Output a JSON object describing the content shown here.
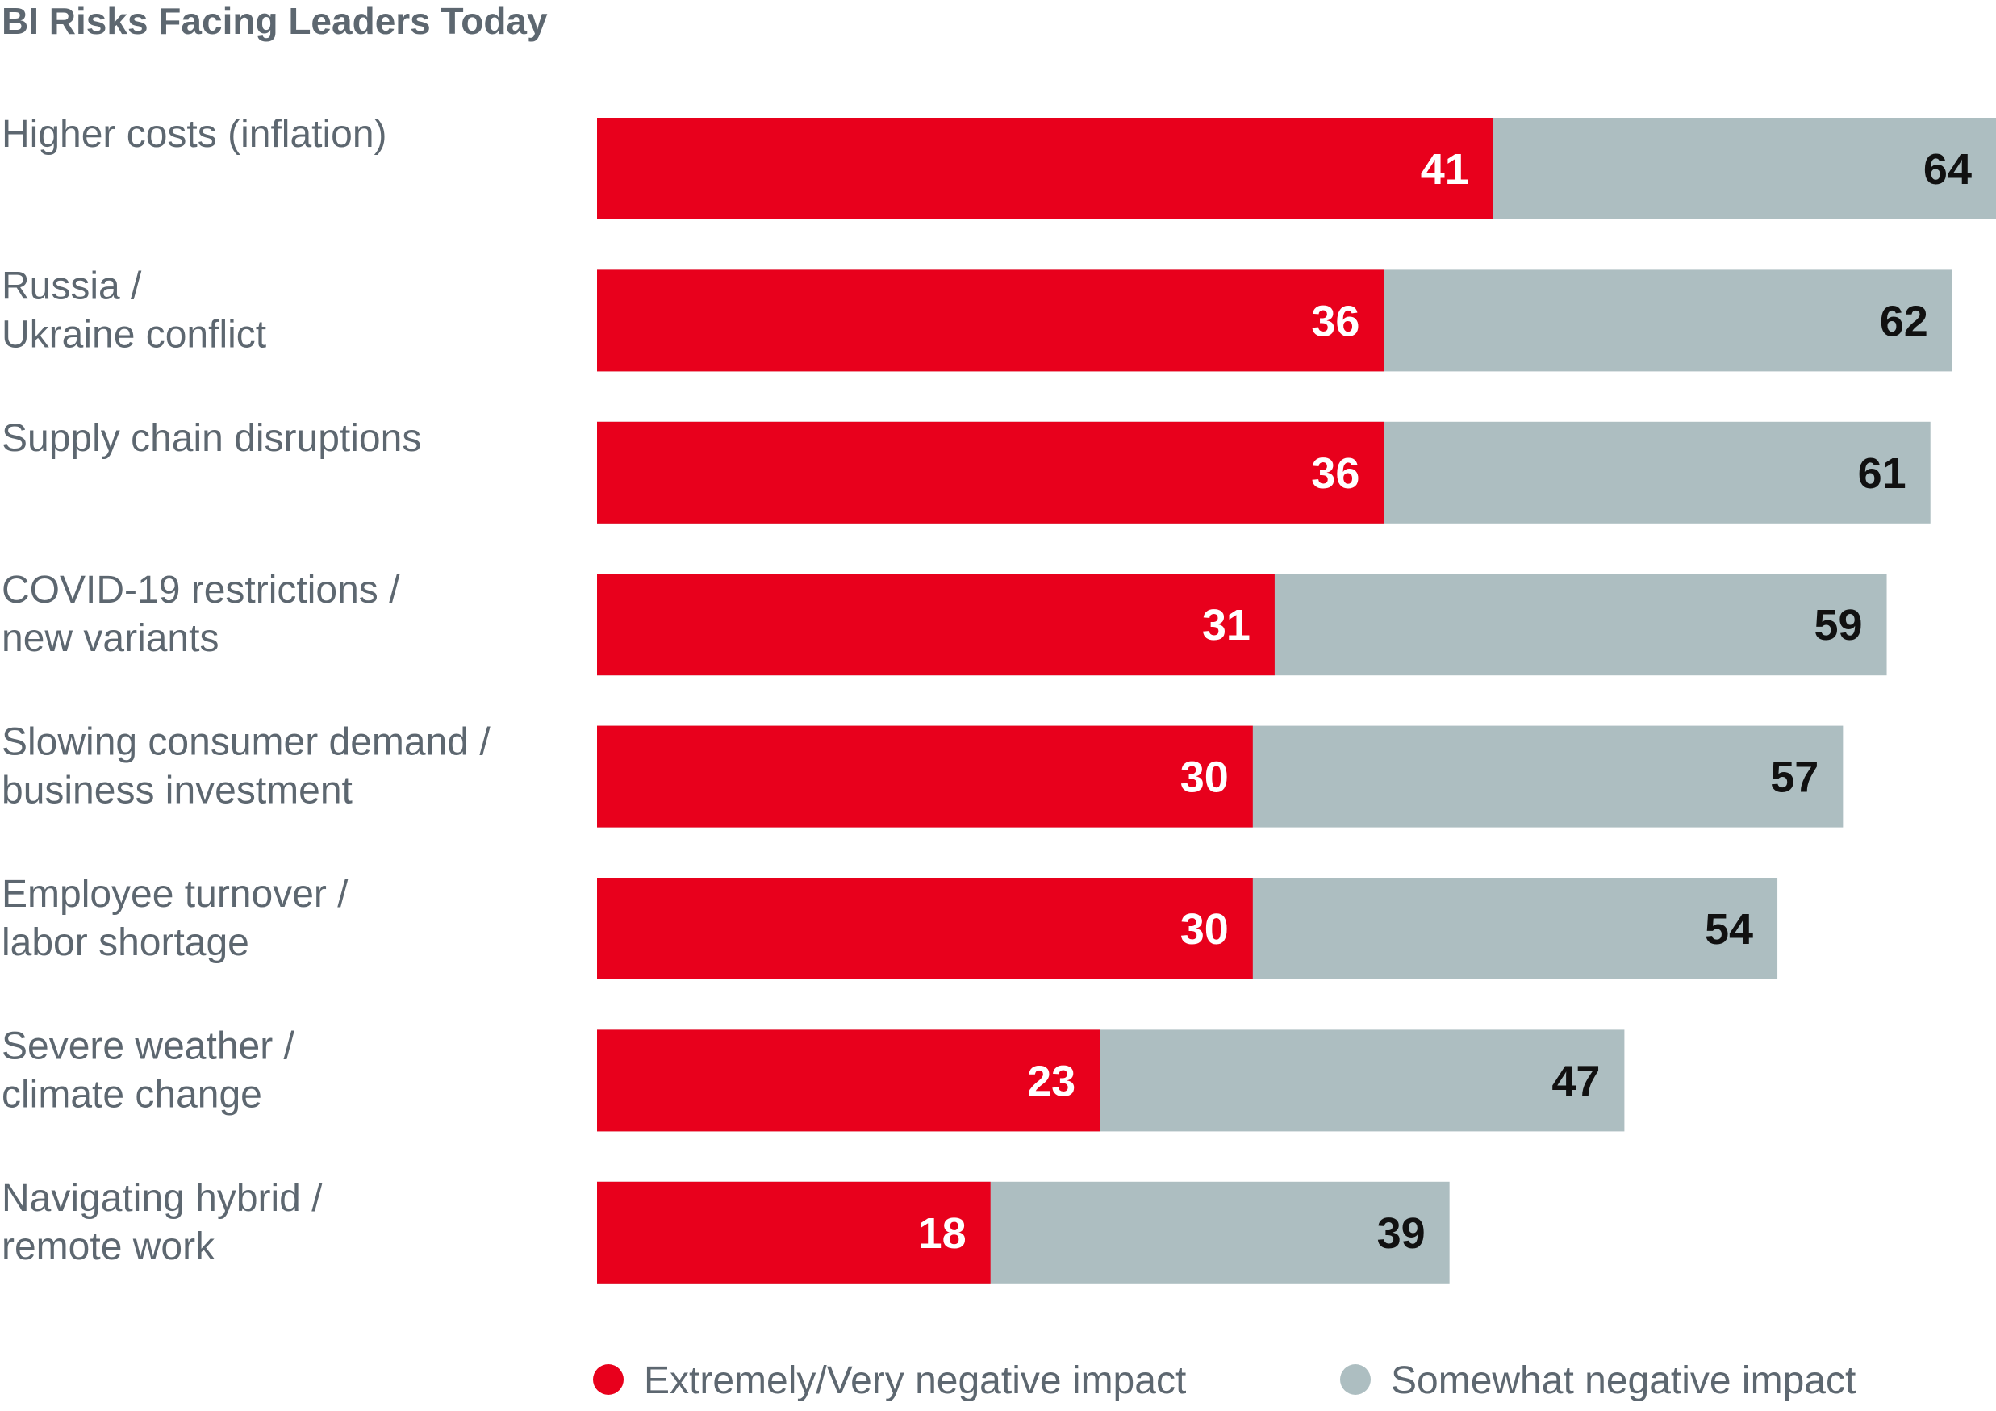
{
  "chart_data": {
    "type": "bar",
    "orientation": "horizontal",
    "title": "BI Risks Facing Leaders Today",
    "categories": [
      [
        "Higher costs (inflation)"
      ],
      [
        "Russia /",
        "Ukraine conflict"
      ],
      [
        "Supply chain disruptions"
      ],
      [
        "COVID-19 restrictions /",
        "new variants"
      ],
      [
        "Slowing consumer demand /",
        "business investment"
      ],
      [
        "Employee turnover /",
        "labor shortage"
      ],
      [
        "Severe weather /",
        "climate change"
      ],
      [
        "Navigating hybrid /",
        "remote work"
      ]
    ],
    "series": [
      {
        "name": "Extremely/Very negative impact",
        "color": "#e8001c",
        "values": [
          41,
          36,
          36,
          31,
          30,
          30,
          23,
          18
        ]
      },
      {
        "name": "Somewhat negative impact",
        "color": "#adbec1",
        "values": [
          64,
          62,
          61,
          59,
          57,
          54,
          47,
          39
        ]
      }
    ],
    "xlim": [
      0,
      64
    ],
    "xlabel": "",
    "ylabel": "",
    "grid": false,
    "legend": "bottom"
  }
}
